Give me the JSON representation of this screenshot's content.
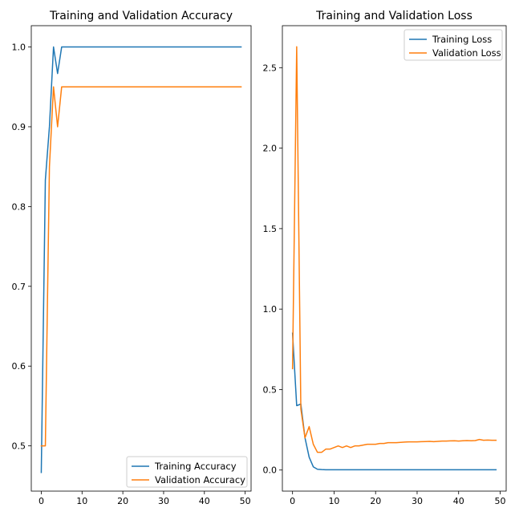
{
  "chart_data": [
    {
      "type": "line",
      "title": "Training and Validation Accuracy",
      "xlabel": "",
      "ylabel": "",
      "xlim": [
        -2.45,
        51.45
      ],
      "ylim": [
        0.4433,
        1.0267
      ],
      "xticks": [
        0,
        10,
        20,
        30,
        40,
        50
      ],
      "yticks": [
        0.5,
        0.6,
        0.7,
        0.8,
        0.9,
        1.0
      ],
      "xtick_labels": [
        "0",
        "10",
        "20",
        "30",
        "40",
        "50"
      ],
      "ytick_labels": [
        "0.5",
        "0.6",
        "0.7",
        "0.8",
        "0.9",
        "1.0"
      ],
      "grid": false,
      "legend_position": "lower-right",
      "series": [
        {
          "name": "Training Accuracy",
          "color": "#1f77b4",
          "values": [
            0.4667,
            0.8333,
            0.9,
            1.0,
            0.9667,
            1.0,
            1.0,
            1.0,
            1.0,
            1.0,
            1.0,
            1.0,
            1.0,
            1.0,
            1.0,
            1.0,
            1.0,
            1.0,
            1.0,
            1.0,
            1.0,
            1.0,
            1.0,
            1.0,
            1.0,
            1.0,
            1.0,
            1.0,
            1.0,
            1.0,
            1.0,
            1.0,
            1.0,
            1.0,
            1.0,
            1.0,
            1.0,
            1.0,
            1.0,
            1.0,
            1.0,
            1.0,
            1.0,
            1.0,
            1.0,
            1.0,
            1.0,
            1.0,
            1.0,
            1.0
          ]
        },
        {
          "name": "Validation Accuracy",
          "color": "#ff7f0e",
          "values": [
            0.5,
            0.5,
            0.85,
            0.95,
            0.9,
            0.95,
            0.95,
            0.95,
            0.95,
            0.95,
            0.95,
            0.95,
            0.95,
            0.95,
            0.95,
            0.95,
            0.95,
            0.95,
            0.95,
            0.95,
            0.95,
            0.95,
            0.95,
            0.95,
            0.95,
            0.95,
            0.95,
            0.95,
            0.95,
            0.95,
            0.95,
            0.95,
            0.95,
            0.95,
            0.95,
            0.95,
            0.95,
            0.95,
            0.95,
            0.95,
            0.95,
            0.95,
            0.95,
            0.95,
            0.95,
            0.95,
            0.95,
            0.95,
            0.95,
            0.95
          ]
        }
      ]
    },
    {
      "type": "line",
      "title": "Training and Validation Loss",
      "xlabel": "",
      "ylabel": "",
      "xlim": [
        -2.45,
        51.45
      ],
      "ylim": [
        -0.131,
        2.761
      ],
      "xticks": [
        0,
        10,
        20,
        30,
        40,
        50
      ],
      "yticks": [
        0.0,
        0.5,
        1.0,
        1.5,
        2.0,
        2.5
      ],
      "xtick_labels": [
        "0",
        "10",
        "20",
        "30",
        "40",
        "50"
      ],
      "ytick_labels": [
        "0.0",
        "0.5",
        "1.0",
        "1.5",
        "2.0",
        "2.5"
      ],
      "grid": false,
      "legend_position": "top-right",
      "series": [
        {
          "name": "Training Loss",
          "color": "#1f77b4",
          "values": [
            0.85,
            0.4,
            0.41,
            0.2,
            0.08,
            0.02,
            0.005,
            0.003,
            0.002,
            0.002,
            0.002,
            0.002,
            0.002,
            0.002,
            0.002,
            0.002,
            0.002,
            0.002,
            0.002,
            0.002,
            0.002,
            0.002,
            0.002,
            0.002,
            0.002,
            0.002,
            0.002,
            0.002,
            0.002,
            0.002,
            0.002,
            0.002,
            0.002,
            0.002,
            0.002,
            0.002,
            0.002,
            0.002,
            0.002,
            0.002,
            0.002,
            0.002,
            0.002,
            0.002,
            0.002,
            0.002,
            0.002,
            0.002,
            0.002,
            0.002
          ]
        },
        {
          "name": "Validation Loss",
          "color": "#ff7f0e",
          "values": [
            0.63,
            2.63,
            0.38,
            0.2,
            0.27,
            0.16,
            0.11,
            0.11,
            0.13,
            0.13,
            0.14,
            0.15,
            0.14,
            0.15,
            0.14,
            0.15,
            0.15,
            0.155,
            0.16,
            0.16,
            0.16,
            0.165,
            0.165,
            0.17,
            0.17,
            0.17,
            0.172,
            0.174,
            0.175,
            0.175,
            0.175,
            0.176,
            0.177,
            0.178,
            0.176,
            0.178,
            0.18,
            0.18,
            0.181,
            0.182,
            0.18,
            0.182,
            0.183,
            0.182,
            0.183,
            0.19,
            0.185,
            0.186,
            0.185,
            0.185
          ]
        }
      ]
    }
  ]
}
